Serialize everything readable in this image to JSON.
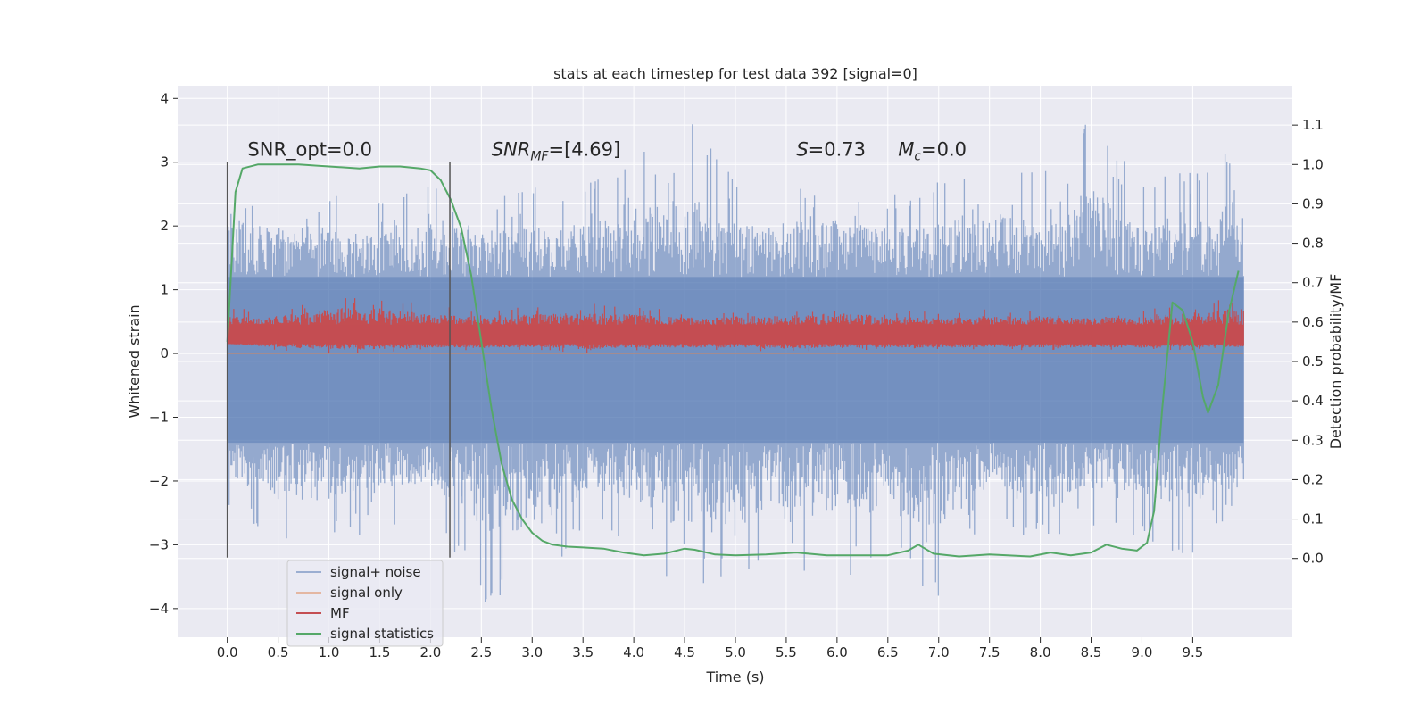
{
  "chart_data": {
    "type": "line",
    "title": "stats at each timestep for test data 392 [signal=0]",
    "xlabel": "Time (s)",
    "ylabel": "Whitened strain",
    "y2label": "Detection probability/MF",
    "xlim": [
      -0.48,
      10.48
    ],
    "ylim": [
      -4.45,
      4.2
    ],
    "y2lim": [
      -0.2,
      1.2
    ],
    "x_ticks": [
      0.0,
      0.5,
      1.0,
      1.5,
      2.0,
      2.5,
      3.0,
      3.5,
      4.0,
      4.5,
      5.0,
      5.5,
      6.0,
      6.5,
      7.0,
      7.5,
      8.0,
      8.5,
      9.0,
      9.5
    ],
    "x_tick_labels": [
      "0.0",
      "0.5",
      "1.0",
      "1.5",
      "2.0",
      "2.5",
      "3.0",
      "3.5",
      "4.0",
      "4.5",
      "5.0",
      "5.5",
      "6.0",
      "6.5",
      "7.0",
      "7.5",
      "8.0",
      "8.5",
      "9.0",
      "9.5"
    ],
    "y_ticks": [
      4,
      3,
      2,
      1,
      0,
      -1,
      -2,
      -3,
      -4
    ],
    "y_tick_labels": [
      "4",
      "3",
      "2",
      "1",
      "0",
      "−1",
      "−2",
      "−3",
      "−4"
    ],
    "y2_ticks": [
      1.1,
      1.0,
      0.9,
      0.8,
      0.7,
      0.6,
      0.5,
      0.4,
      0.3,
      0.2,
      0.1,
      0.0
    ],
    "y2_tick_labels": [
      "1.1",
      "1.0",
      "0.9",
      "0.8",
      "0.7",
      "0.6",
      "0.5",
      "0.4",
      "0.3",
      "0.2",
      "0.1",
      "0.0"
    ],
    "grid": true,
    "background": "#eaeaf2",
    "legend_position": "lower-left",
    "vlines": [
      {
        "x": 0.0,
        "ymin": -3.2,
        "ymax": 3.0
      },
      {
        "x": 2.19,
        "ymin": -3.2,
        "ymax": 3.0
      }
    ],
    "annotations": [
      {
        "text": "SNR_opt=0.0",
        "x": 0.2,
        "y": 3.1
      },
      {
        "text": "SNR",
        "sub": "MF",
        "tail": "=[4.69]",
        "x": 2.6,
        "y": 3.1,
        "italic": true
      },
      {
        "text": "S",
        "tail": "=0.73",
        "x": 5.6,
        "y": 3.1,
        "italic": true
      },
      {
        "text": "M",
        "sub": "c",
        "tail": "=0.0",
        "x": 6.6,
        "y": 3.1,
        "italic": true
      }
    ],
    "series": [
      {
        "name": "signal+ noise",
        "color": "#4c72b0",
        "axis": "left",
        "kind": "noise-band",
        "x_range": [
          0,
          10
        ],
        "core_range": [
          -1.4,
          1.2
        ],
        "envelope_max": [
          3.0,
          2.7,
          2.5,
          2.4,
          2.7,
          2.5,
          2.6,
          2.7,
          3.0,
          3.85,
          2.7,
          2.8,
          2.8,
          2.6,
          2.7,
          3.05,
          2.8,
          3.7,
          2.7,
          2.9,
          3.45
        ],
        "envelope_min": [
          -2.4,
          -3.0,
          -3.1,
          -2.8,
          -2.6,
          -3.9,
          -4.0,
          -2.7,
          -3.0,
          -3.95,
          -3.4,
          -3.4,
          -3.5,
          -3.4,
          -3.9,
          -2.6,
          -3.0,
          -2.7,
          -2.9,
          -3.25,
          -2.2
        ]
      },
      {
        "name": "signal only",
        "color": "#dd8452",
        "axis": "left",
        "x": [
          0,
          10
        ],
        "values": [
          0.0,
          0.0
        ]
      },
      {
        "name": "MF",
        "color": "#c44e52",
        "axis": "left",
        "kind": "noise-band",
        "x_range": [
          0,
          10
        ],
        "core_range": [
          0.15,
          0.45
        ],
        "envelope_max": [
          0.7,
          0.7,
          0.9,
          0.95,
          0.75,
          0.7,
          0.75,
          0.8,
          0.75,
          0.65,
          0.7,
          0.7,
          0.8,
          0.7,
          0.65,
          0.7,
          0.7,
          0.65,
          0.7,
          0.8,
          0.95
        ],
        "envelope_min": [
          0.15,
          0.05,
          0.0,
          0.0,
          0.05,
          0.05,
          0.05,
          0.0,
          0.05,
          0.05,
          0.05,
          0.0,
          0.05,
          0.05,
          0.05,
          0.05,
          0.05,
          0.05,
          0.05,
          0.05,
          0.05
        ]
      },
      {
        "name": "signal statistics",
        "color": "#55a868",
        "axis": "right",
        "x": [
          0.0,
          0.08,
          0.15,
          0.3,
          0.5,
          0.7,
          1.0,
          1.3,
          1.5,
          1.7,
          1.9,
          2.0,
          2.1,
          2.2,
          2.3,
          2.4,
          2.5,
          2.6,
          2.7,
          2.8,
          2.9,
          3.0,
          3.1,
          3.2,
          3.35,
          3.5,
          3.7,
          3.9,
          4.1,
          4.3,
          4.5,
          4.6,
          4.8,
          5.0,
          5.3,
          5.6,
          5.9,
          6.2,
          6.5,
          6.7,
          6.8,
          6.95,
          7.2,
          7.5,
          7.9,
          8.1,
          8.3,
          8.5,
          8.65,
          8.8,
          8.95,
          9.05,
          9.12,
          9.2,
          9.3,
          9.4,
          9.5,
          9.6,
          9.65,
          9.75,
          9.85,
          9.95
        ],
        "values": [
          0.55,
          0.93,
          0.99,
          1.0,
          1.0,
          1.0,
          0.995,
          0.99,
          0.995,
          0.995,
          0.99,
          0.985,
          0.96,
          0.91,
          0.84,
          0.72,
          0.55,
          0.38,
          0.24,
          0.15,
          0.1,
          0.065,
          0.045,
          0.035,
          0.03,
          0.028,
          0.025,
          0.015,
          0.008,
          0.012,
          0.025,
          0.022,
          0.01,
          0.008,
          0.01,
          0.015,
          0.008,
          0.008,
          0.008,
          0.02,
          0.035,
          0.012,
          0.005,
          0.01,
          0.005,
          0.015,
          0.008,
          0.015,
          0.035,
          0.025,
          0.02,
          0.04,
          0.12,
          0.38,
          0.65,
          0.63,
          0.55,
          0.41,
          0.37,
          0.44,
          0.62,
          0.73
        ]
      }
    ]
  }
}
